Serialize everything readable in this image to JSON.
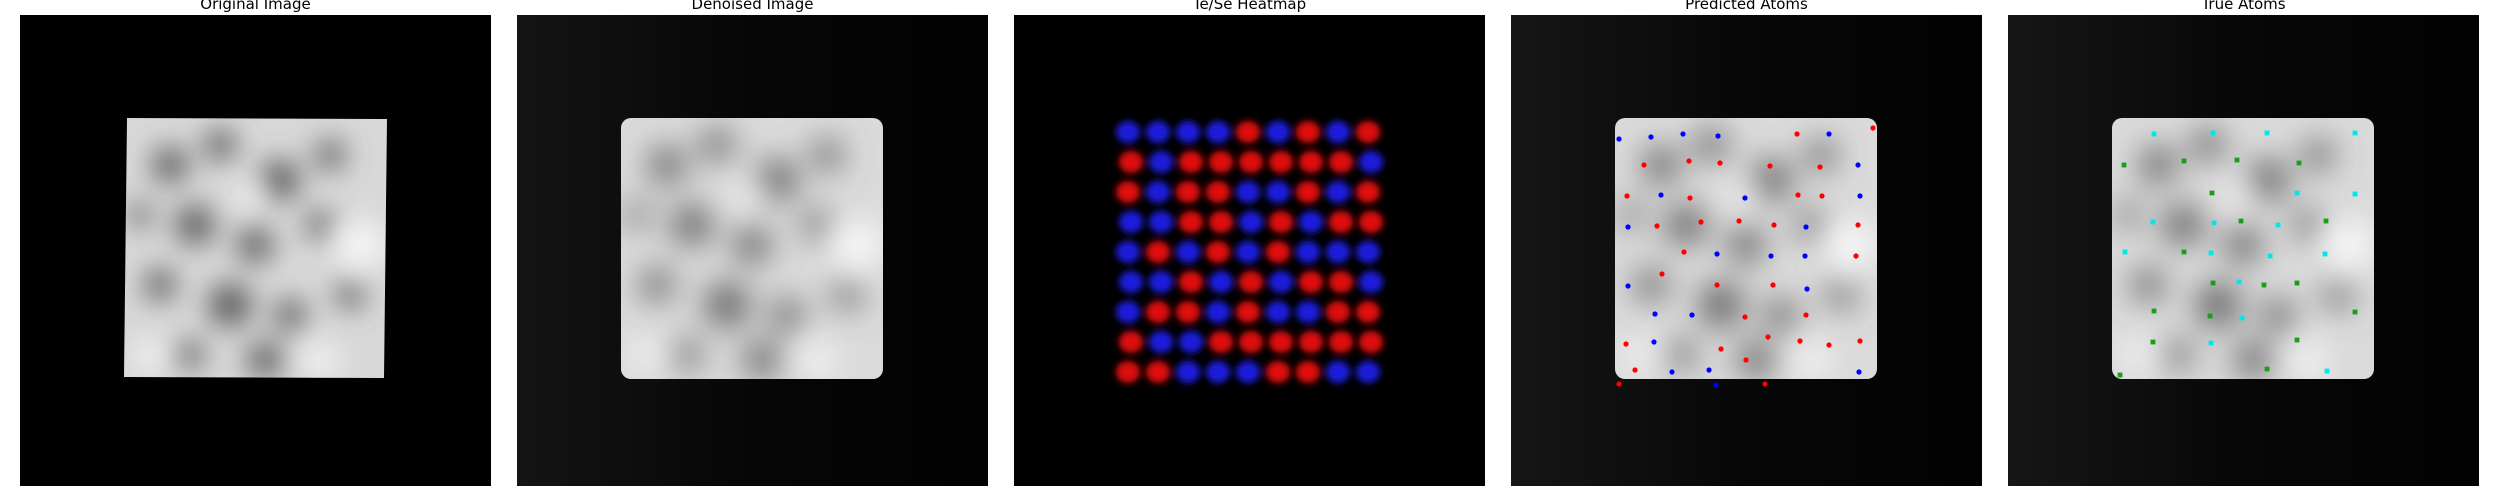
{
  "panels": [
    {
      "title": "Original Image"
    },
    {
      "title": "Denoised Image"
    },
    {
      "title": "Te/Se Heatmap"
    },
    {
      "title": "Predicted Atoms"
    },
    {
      "title": "True Atoms"
    }
  ],
  "colors": {
    "te_heat": "#e01010",
    "se_heat": "#1a1adc",
    "pred_te": "#ff0000",
    "pred_se": "#0000ff",
    "true_a": "#00e5ee",
    "true_b": "#1a9e1a"
  }
}
